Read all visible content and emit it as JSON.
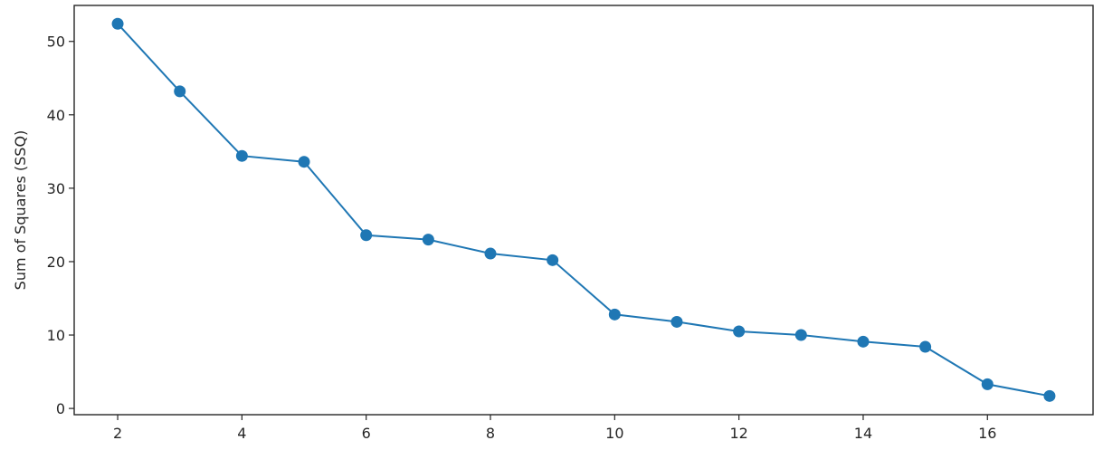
{
  "chart_data": {
    "type": "line",
    "title": "",
    "xlabel": "",
    "ylabel": "Sum of Squares (SSQ)",
    "x": [
      2,
      3,
      4,
      5,
      6,
      7,
      8,
      9,
      10,
      11,
      12,
      13,
      14,
      15,
      16,
      17
    ],
    "y": [
      52.4,
      43.2,
      34.4,
      33.6,
      23.6,
      23.0,
      21.1,
      20.2,
      12.8,
      11.8,
      10.5,
      10.0,
      9.1,
      8.4,
      3.3,
      1.7
    ],
    "xlim": [
      1.3,
      17.7
    ],
    "ylim": [
      -0.85,
      54.9
    ],
    "xticks": [
      2,
      4,
      6,
      8,
      10,
      12,
      14,
      16
    ],
    "yticks": [
      0,
      10,
      20,
      30,
      40,
      50
    ],
    "grid": false,
    "color": "#1f77b4",
    "marker": "circle"
  }
}
